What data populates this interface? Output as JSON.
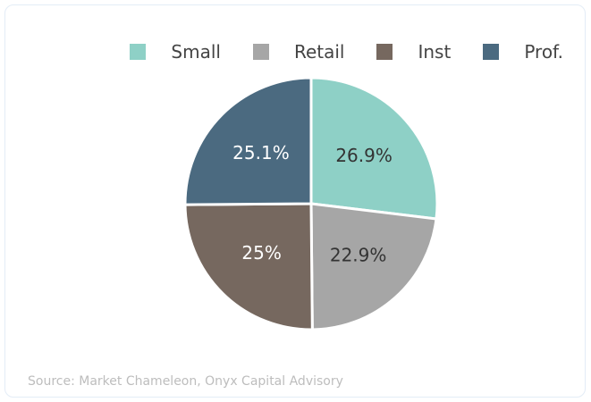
{
  "chart_data": {
    "type": "pie",
    "categories": [
      "Small",
      "Retail",
      "Inst",
      "Prof."
    ],
    "values": [
      26.9,
      22.9,
      25,
      25.1
    ],
    "value_labels": [
      "26.9%",
      "22.9%",
      "25%",
      "25.1%"
    ],
    "colors": [
      "#8ed0c6",
      "#a6a6a6",
      "#76685f",
      "#4b6a80"
    ],
    "legend": "top-right",
    "source": "Source: Market Chameleon, Onyx Capital Advisory"
  }
}
